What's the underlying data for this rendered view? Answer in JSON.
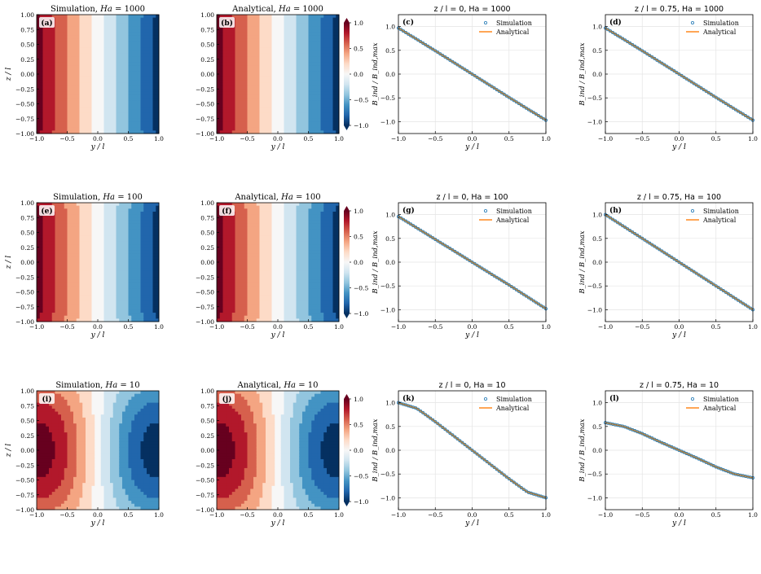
{
  "figure": {
    "rows": [
      {
        "Ha": 1000,
        "panels": [
          {
            "tag": "(a)",
            "kind": "contour",
            "source": "Simulation",
            "title_prefix": "Simulation, ",
            "title_var": "Ha",
            "title_suffix": " = 1000"
          },
          {
            "tag": "(b)",
            "kind": "contour",
            "source": "Analytical",
            "title_prefix": "Analytical, ",
            "title_var": "Ha",
            "title_suffix": " = 1000",
            "colorbar": true
          },
          {
            "tag": "(c)",
            "kind": "line",
            "title": "z / l = 0, Ha = 1000"
          },
          {
            "tag": "(d)",
            "kind": "line",
            "title": "z / l = 0.75, Ha = 1000"
          }
        ]
      },
      {
        "Ha": 100,
        "panels": [
          {
            "tag": "(e)",
            "kind": "contour",
            "source": "Simulation",
            "title_prefix": "Simulation, ",
            "title_var": "Ha",
            "title_suffix": " = 100"
          },
          {
            "tag": "(f)",
            "kind": "contour",
            "source": "Analytical",
            "title_prefix": "Analytical, ",
            "title_var": "Ha",
            "title_suffix": " = 100",
            "colorbar": true
          },
          {
            "tag": "(g)",
            "kind": "line",
            "title": "z / l = 0, Ha = 100"
          },
          {
            "tag": "(h)",
            "kind": "line",
            "title": "z / l = 0.75, Ha = 100"
          }
        ]
      },
      {
        "Ha": 10,
        "panels": [
          {
            "tag": "(i)",
            "kind": "contour",
            "source": "Simulation",
            "title_prefix": "Simulation, ",
            "title_var": "Ha",
            "title_suffix": " = 10"
          },
          {
            "tag": "(j)",
            "kind": "contour",
            "source": "Analytical",
            "title_prefix": "Analytical, ",
            "title_var": "Ha",
            "title_suffix": " = 10",
            "colorbar": true
          },
          {
            "tag": "(k)",
            "kind": "line",
            "title": "z / l = 0, Ha = 10"
          },
          {
            "tag": "(l)",
            "kind": "line",
            "title": "z / l = 0.75, Ha = 10"
          }
        ]
      }
    ],
    "contour_axes": {
      "xlabel": "y / l",
      "ylabel": "z / l",
      "xticks": [
        "−1.0",
        "−0.5",
        "0.0",
        "0.5",
        "1.0"
      ],
      "yticks": [
        "1.00",
        "0.75",
        "0.50",
        "0.25",
        "0.00",
        "−0.25",
        "−0.50",
        "−0.75",
        "−1.00"
      ],
      "xlim": [
        -1,
        1
      ],
      "ylim": [
        -1,
        1
      ]
    },
    "colorbar": {
      "ticks": [
        "1.0",
        "0.5",
        "0.0",
        "−0.5",
        "−1.0"
      ],
      "range": [
        -1,
        1
      ],
      "colormap": "RdBu",
      "colors": [
        "#67001f",
        "#b2182b",
        "#d6604d",
        "#f4a582",
        "#fddbc7",
        "#f7f7f7",
        "#d1e5f0",
        "#92c5de",
        "#4393c3",
        "#2166ac",
        "#053061"
      ]
    },
    "line_axes": {
      "xlabel": "y / l",
      "ylabel": "B_ind / B_ind,max",
      "xticks": [
        "−1.0",
        "−0.5",
        "0.0",
        "0.5",
        "1.0"
      ],
      "yticks": [
        "1.0",
        "0.5",
        "0.0",
        "−0.5",
        "−1.0"
      ],
      "xlim": [
        -1,
        1
      ],
      "ylim": [
        -1.25,
        1.25
      ]
    },
    "legend": {
      "simulation": "Simulation",
      "analytical": "Analytical",
      "simulation_color": "#1f77b4",
      "analytical_color": "#ff7f0e",
      "position": "top-right"
    }
  },
  "chart_data": [
    {
      "type": "line",
      "title": "z / l = 0, Ha = 1000",
      "xlabel": "y / l",
      "ylabel": "B_ind / B_ind,max",
      "xlim": [
        -1,
        1
      ],
      "ylim": [
        -1.25,
        1.25
      ],
      "series": [
        {
          "name": "Simulation",
          "x": [
            -1.0,
            -0.5,
            0.0,
            0.5,
            1.0
          ],
          "values": [
            0.97,
            0.49,
            0.0,
            -0.49,
            -0.97
          ]
        },
        {
          "name": "Analytical",
          "x": [
            -1.0,
            -0.5,
            0.0,
            0.5,
            1.0
          ],
          "values": [
            0.97,
            0.49,
            0.0,
            -0.49,
            -0.97
          ]
        }
      ]
    },
    {
      "type": "line",
      "title": "z / l = 0.75, Ha = 1000",
      "xlabel": "y / l",
      "ylabel": "B_ind / B_ind,max",
      "xlim": [
        -1,
        1
      ],
      "ylim": [
        -1.25,
        1.25
      ],
      "series": [
        {
          "name": "Simulation",
          "x": [
            -1.0,
            -0.5,
            0.0,
            0.5,
            1.0
          ],
          "values": [
            0.97,
            0.49,
            0.0,
            -0.49,
            -0.97
          ]
        },
        {
          "name": "Analytical",
          "x": [
            -1.0,
            -0.5,
            0.0,
            0.5,
            1.0
          ],
          "values": [
            0.97,
            0.49,
            0.0,
            -0.49,
            -0.97
          ]
        }
      ]
    },
    {
      "type": "line",
      "title": "z / l = 0, Ha = 100",
      "xlabel": "y / l",
      "ylabel": "B_ind / B_ind,max",
      "xlim": [
        -1,
        1
      ],
      "ylim": [
        -1.25,
        1.25
      ],
      "series": [
        {
          "name": "Simulation",
          "x": [
            -1.0,
            -0.5,
            0.0,
            0.5,
            1.0
          ],
          "values": [
            0.96,
            0.48,
            0.0,
            -0.48,
            -0.98
          ]
        },
        {
          "name": "Analytical",
          "x": [
            -1.0,
            -0.5,
            0.0,
            0.5,
            1.0
          ],
          "values": [
            0.96,
            0.48,
            0.0,
            -0.48,
            -0.98
          ]
        }
      ]
    },
    {
      "type": "line",
      "title": "z / l = 0.75, Ha = 100",
      "xlabel": "y / l",
      "ylabel": "B_ind / B_ind,max",
      "xlim": [
        -1,
        1
      ],
      "ylim": [
        -1.25,
        1.25
      ],
      "series": [
        {
          "name": "Simulation",
          "x": [
            -1.0,
            -0.5,
            0.0,
            0.5,
            1.0
          ],
          "values": [
            1.0,
            0.5,
            0.0,
            -0.5,
            -1.0
          ]
        },
        {
          "name": "Analytical",
          "x": [
            -1.0,
            -0.5,
            0.0,
            0.5,
            1.0
          ],
          "values": [
            1.0,
            0.5,
            0.0,
            -0.5,
            -1.0
          ]
        }
      ]
    },
    {
      "type": "line",
      "title": "z / l = 0, Ha = 10",
      "xlabel": "y / l",
      "ylabel": "B_ind / B_ind,max",
      "xlim": [
        -1,
        1
      ],
      "ylim": [
        -1.25,
        1.25
      ],
      "series": [
        {
          "name": "Simulation",
          "x": [
            -1.0,
            -0.75,
            -0.5,
            -0.25,
            0.0,
            0.25,
            0.5,
            0.75,
            1.0
          ],
          "values": [
            1.0,
            0.88,
            0.6,
            0.3,
            0.0,
            -0.3,
            -0.6,
            -0.88,
            -1.0
          ]
        },
        {
          "name": "Analytical",
          "x": [
            -1.0,
            -0.75,
            -0.5,
            -0.25,
            0.0,
            0.25,
            0.5,
            0.75,
            1.0
          ],
          "values": [
            1.0,
            0.88,
            0.6,
            0.3,
            0.0,
            -0.3,
            -0.6,
            -0.88,
            -1.0
          ]
        }
      ]
    },
    {
      "type": "line",
      "title": "z / l = 0.75, Ha = 10",
      "xlabel": "y / l",
      "ylabel": "B_ind / B_ind,max",
      "xlim": [
        -1,
        1
      ],
      "ylim": [
        -1.25,
        1.25
      ],
      "series": [
        {
          "name": "Simulation",
          "x": [
            -1.0,
            -0.75,
            -0.5,
            -0.25,
            0.0,
            0.25,
            0.5,
            0.75,
            1.0
          ],
          "values": [
            0.58,
            0.5,
            0.35,
            0.17,
            0.0,
            -0.17,
            -0.35,
            -0.5,
            -0.58
          ]
        },
        {
          "name": "Analytical",
          "x": [
            -1.0,
            -0.75,
            -0.5,
            -0.25,
            0.0,
            0.25,
            0.5,
            0.75,
            1.0
          ],
          "values": [
            0.58,
            0.5,
            0.35,
            0.17,
            0.0,
            -0.17,
            -0.35,
            -0.5,
            -0.58
          ]
        }
      ]
    }
  ]
}
